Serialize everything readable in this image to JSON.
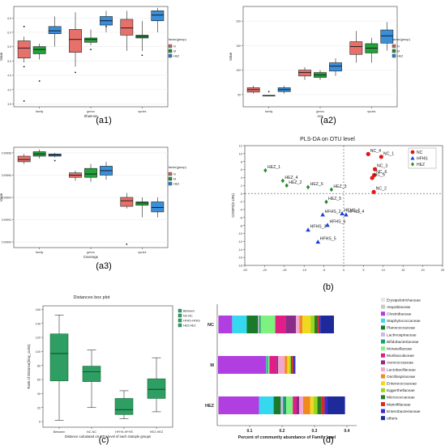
{
  "colors": {
    "N": "#e8706a",
    "M": "#22a33a",
    "HEZ": "#3a8fd8",
    "NC": "#e01818",
    "HFHS": "#1a3fd6",
    "HEZ_pls": "#2a8a2a"
  },
  "panel_labels": [
    "(a1)",
    "(a2)",
    "(a3)",
    "(b)",
    "(c)",
    "(d)"
  ],
  "chart_data": [
    {
      "id": "a1",
      "type": "box",
      "xlabel": "Shannon",
      "ylabel": "Value",
      "categories": [
        "family",
        "genus",
        "spcies"
      ],
      "yticks": [
        "3.5",
        "4.0",
        "4.5",
        "5.0",
        "5.5",
        "6.0",
        "6.5"
      ],
      "ylim": [
        3.4,
        6.9
      ],
      "legend": {
        "title": "factor(group)",
        "items": [
          "N",
          "M",
          "HEZ"
        ]
      },
      "boxes": [
        {
          "group": "N",
          "cat": 0,
          "whisker_low": 4.95,
          "q1": 5.1,
          "median": 5.45,
          "q3": 5.7,
          "whisker_high": 5.85,
          "outliers": [
            6.2,
            4.8,
            3.6
          ]
        },
        {
          "group": "M",
          "cat": 0,
          "whisker_low": 5.05,
          "q1": 5.25,
          "median": 5.4,
          "q3": 5.5,
          "whisker_high": 5.6,
          "outliers": [
            4.3
          ]
        },
        {
          "group": "HEZ",
          "cat": 0,
          "whisker_low": 5.5,
          "q1": 5.95,
          "median": 6.05,
          "q3": 6.2,
          "whisker_high": 6.55,
          "outliers": []
        },
        {
          "group": "N",
          "cat": 1,
          "whisker_low": 4.8,
          "q1": 5.3,
          "median": 5.75,
          "q3": 6.1,
          "whisker_high": 6.7,
          "outliers": [
            4.6
          ]
        },
        {
          "group": "M",
          "cat": 1,
          "whisker_low": 5.55,
          "q1": 5.65,
          "median": 5.75,
          "q3": 5.8,
          "whisker_high": 6.1,
          "outliers": [
            5.4
          ]
        },
        {
          "group": "HEZ",
          "cat": 1,
          "whisker_low": 6.0,
          "q1": 6.25,
          "median": 6.4,
          "q3": 6.55,
          "whisker_high": 6.75,
          "outliers": [
            6.2
          ]
        },
        {
          "group": "N",
          "cat": 2,
          "whisker_low": 5.35,
          "q1": 5.9,
          "median": 6.15,
          "q3": 6.45,
          "whisker_high": 6.75,
          "outliers": []
        },
        {
          "group": "M",
          "cat": 2,
          "whisker_low": 5.35,
          "q1": 5.8,
          "median": 5.85,
          "q3": 5.9,
          "whisker_high": 6.4,
          "outliers": [
            5.2
          ]
        },
        {
          "group": "HEZ",
          "cat": 2,
          "whisker_low": 6.0,
          "q1": 6.4,
          "median": 6.6,
          "q3": 6.75,
          "whisker_high": 6.85,
          "outliers": []
        }
      ]
    },
    {
      "id": "a2",
      "type": "box",
      "xlabel": "Ace",
      "ylabel": "Value",
      "categories": [
        "family",
        "genus",
        "spcies"
      ],
      "yticks": [
        "50",
        "100",
        "150",
        "200"
      ],
      "ylim": [
        25,
        230
      ],
      "legend": {
        "title": "factor(group)",
        "items": [
          "N",
          "M",
          "HEZ"
        ]
      },
      "boxes": [
        {
          "group": "N",
          "cat": 0,
          "whisker_low": 52,
          "q1": 55,
          "median": 60,
          "q3": 64,
          "whisker_high": 68,
          "outliers": []
        },
        {
          "group": "M",
          "cat": 0,
          "whisker_low": 48,
          "q1": 48,
          "median": 48,
          "q3": 48,
          "whisker_high": 48,
          "outliers": [
            56
          ]
        },
        {
          "group": "HEZ",
          "cat": 0,
          "whisker_low": 52,
          "q1": 56,
          "median": 60,
          "q3": 64,
          "whisker_high": 68,
          "outliers": []
        },
        {
          "group": "N",
          "cat": 1,
          "whisker_low": 80,
          "q1": 88,
          "median": 95,
          "q3": 100,
          "whisker_high": 106,
          "outliers": []
        },
        {
          "group": "M",
          "cat": 1,
          "whisker_low": 80,
          "q1": 85,
          "median": 90,
          "q3": 95,
          "whisker_high": 100,
          "outliers": []
        },
        {
          "group": "HEZ",
          "cat": 1,
          "whisker_low": 88,
          "q1": 98,
          "median": 108,
          "q3": 115,
          "whisker_high": 124,
          "outliers": []
        },
        {
          "group": "N",
          "cat": 2,
          "whisker_low": 115,
          "q1": 132,
          "median": 148,
          "q3": 158,
          "whisker_high": 180,
          "outliers": []
        },
        {
          "group": "M",
          "cat": 2,
          "whisker_low": 115,
          "q1": 135,
          "median": 145,
          "q3": 154,
          "whisker_high": 166,
          "outliers": []
        },
        {
          "group": "HEZ",
          "cat": 2,
          "whisker_low": 140,
          "q1": 155,
          "median": 170,
          "q3": 182,
          "whisker_high": 198,
          "outliers": []
        }
      ]
    },
    {
      "id": "a3",
      "type": "box",
      "xlabel": "Coverage",
      "ylabel": "Value",
      "categories": [
        "family",
        "genus",
        "spcies"
      ],
      "yticks": [
        "0.99990",
        "0.99992",
        "0.99994",
        "0.99996",
        "0.99998"
      ],
      "ylim": [
        0.999895,
        0.999985
      ],
      "legend": {
        "title": "factor(group)",
        "items": [
          "N",
          "M",
          "HEZ"
        ]
      },
      "boxes": [
        {
          "group": "N",
          "cat": 0,
          "whisker_low": 0.99997,
          "q1": 0.999972,
          "median": 0.999974,
          "q3": 0.999977,
          "whisker_high": 0.999979,
          "outliers": []
        },
        {
          "group": "M",
          "cat": 0,
          "whisker_low": 0.999975,
          "q1": 0.999977,
          "median": 0.999979,
          "q3": 0.999981,
          "whisker_high": 0.999983,
          "outliers": []
        },
        {
          "group": "HEZ",
          "cat": 0,
          "whisker_low": 0.999976,
          "q1": 0.999977,
          "median": 0.999978,
          "q3": 0.999979,
          "whisker_high": 0.99998,
          "outliers": [
            0.999973
          ]
        },
        {
          "group": "N",
          "cat": 1,
          "whisker_low": 0.999955,
          "q1": 0.999958,
          "median": 0.99996,
          "q3": 0.999962,
          "whisker_high": 0.999964,
          "outliers": []
        },
        {
          "group": "M",
          "cat": 1,
          "whisker_low": 0.999954,
          "q1": 0.999958,
          "median": 0.999961,
          "q3": 0.999966,
          "whisker_high": 0.99997,
          "outliers": []
        },
        {
          "group": "HEZ",
          "cat": 1,
          "whisker_low": 0.999956,
          "q1": 0.99996,
          "median": 0.999964,
          "q3": 0.999968,
          "whisker_high": 0.999972,
          "outliers": []
        },
        {
          "group": "N",
          "cat": 2,
          "whisker_low": 0.99993,
          "q1": 0.999932,
          "median": 0.999937,
          "q3": 0.99994,
          "whisker_high": 0.999944,
          "outliers": [
            0.999898
          ]
        },
        {
          "group": "M",
          "cat": 2,
          "whisker_low": 0.999922,
          "q1": 0.999933,
          "median": 0.999935,
          "q3": 0.999936,
          "whisker_high": 0.99994,
          "outliers": []
        },
        {
          "group": "HEZ",
          "cat": 2,
          "whisker_low": 0.999922,
          "q1": 0.999927,
          "median": 0.999931,
          "q3": 0.999936,
          "whisker_high": 0.99994,
          "outliers": []
        }
      ]
    },
    {
      "id": "b",
      "type": "scatter",
      "title": "PLS-DA on OTU level",
      "ylabel": "COMP2(9.13%)",
      "xticks": [
        "-25",
        "-20",
        "-15",
        "-10",
        "-5",
        "0",
        "5",
        "10",
        "15",
        "20",
        "25"
      ],
      "xlim": [
        -25,
        25
      ],
      "yticks": [
        "-18",
        "-16",
        "-14",
        "-12",
        "-10",
        "-8",
        "-6",
        "-4",
        "-2",
        "0",
        "2",
        "4",
        "6",
        "8",
        "10",
        "12"
      ],
      "ylim": [
        -18,
        12
      ],
      "legend": [
        "NC",
        "HFHS",
        "HEZ"
      ],
      "points": [
        {
          "group": "NC",
          "label": "NC_4",
          "x": 6.2,
          "y": 9.9
        },
        {
          "group": "NC",
          "label": "NC_1",
          "x": 9.5,
          "y": 9.2
        },
        {
          "group": "NC",
          "label": "NC_3",
          "x": 7.9,
          "y": 6.1
        },
        {
          "group": "NC",
          "label": "NC_6",
          "x": 7.7,
          "y": 4.6
        },
        {
          "group": "NC",
          "label": "NC_5",
          "x": 7.2,
          "y": 3.9
        },
        {
          "group": "NC",
          "label": "NC_2",
          "x": 7.6,
          "y": 0.4
        },
        {
          "group": "HFHS",
          "label": "HFHS_1",
          "x": -0.4,
          "y": -5.0
        },
        {
          "group": "HFHS",
          "label": "HFHS_2",
          "x": -5.3,
          "y": -5.3
        },
        {
          "group": "HFHS",
          "label": "HFHS_4",
          "x": 0.6,
          "y": -5.3
        },
        {
          "group": "HFHS",
          "label": "HFHS_6",
          "x": -4.1,
          "y": -7.9
        },
        {
          "group": "HFHS",
          "label": "HFHS_3",
          "x": -9.0,
          "y": -9.1
        },
        {
          "group": "HFHS",
          "label": "HFHS_5",
          "x": -6.5,
          "y": -12.1
        },
        {
          "group": "HEZ",
          "label": "HEZ_1",
          "x": -19.8,
          "y": 5.8
        },
        {
          "group": "HEZ",
          "label": "HEZ_4",
          "x": -15.4,
          "y": 3.2
        },
        {
          "group": "HEZ",
          "label": "HEZ_2",
          "x": -14.4,
          "y": 2.0
        },
        {
          "group": "HEZ",
          "label": "HEZ_6",
          "x": -9.0,
          "y": 1.6
        },
        {
          "group": "HEZ",
          "label": "HEZ_3",
          "x": -3.1,
          "y": 1.0
        },
        {
          "group": "HEZ",
          "label": "HEZ_5",
          "x": -4.4,
          "y": -2.1
        }
      ]
    },
    {
      "id": "c",
      "type": "box",
      "title": "Distances box plot",
      "xlabel": "Distance calculated on OTU level of each Sample groups",
      "ylabel": "Rank of Distance(bray_curtis)",
      "categories": [
        "Between",
        "NC-NC",
        "HFHS-HFHS",
        "HEZ-HEZ"
      ],
      "yticks": [
        "0",
        "20",
        "40",
        "60",
        "80",
        "100",
        "120",
        "140",
        "160"
      ],
      "ylim": [
        -8,
        165
      ],
      "legend": [
        "Between",
        "NC-NC",
        "HFHS-HFHS",
        "HEZ-HEZ"
      ],
      "boxes": [
        {
          "cat": 0,
          "whisker_low": 2,
          "q1": 58,
          "median": 97,
          "q3": 125,
          "whisker_high": 152
        },
        {
          "cat": 1,
          "whisker_low": 20,
          "q1": 57,
          "median": 71,
          "q3": 79,
          "whisker_high": 102
        },
        {
          "cat": 2,
          "whisker_low": 4,
          "q1": 10,
          "median": 17,
          "q3": 33,
          "whisker_high": 44
        },
        {
          "cat": 3,
          "whisker_low": 14,
          "q1": 33,
          "median": 46,
          "q3": 61,
          "whisker_high": 91
        }
      ]
    },
    {
      "id": "d",
      "type": "bar",
      "orientation": "horizontal",
      "stacked": true,
      "xlabel": "Percent of community abundance of Family level",
      "categories": [
        "NC",
        "M",
        "HEZ"
      ],
      "xticks": [
        "0.1",
        "0.2",
        "0.3",
        "0.4"
      ],
      "xlim": [
        0,
        0.43
      ],
      "series": [
        {
          "name": "Erysipelotrichaceae",
          "color": "#e6e6e6",
          "values": [
            0.002,
            0.001,
            0.002
          ]
        },
        {
          "name": "Atopobiaceae",
          "color": "#c9c9c9",
          "values": [
            0.002,
            0.001,
            0.002
          ]
        },
        {
          "name": "Clostridiaceae",
          "color": "#b03ee0",
          "values": [
            0.042,
            0.148,
            0.125
          ]
        },
        {
          "name": "Staphylococcaceae",
          "color": "#35d8ee",
          "values": [
            0.045,
            0.002,
            0.045
          ]
        },
        {
          "name": "Planococcaceae",
          "color": "#1b7a2a",
          "values": [
            0.035,
            0.002,
            0.022
          ]
        },
        {
          "name": "Lachnospiraceae",
          "color": "#cdb8e8",
          "values": [
            0.004,
            0.002,
            0.007
          ]
        },
        {
          "name": "Bifidobacteriaceae",
          "color": "#17a06a",
          "values": [
            0.004,
            0.002,
            0.01
          ]
        },
        {
          "name": "Moraxellaceae",
          "color": "#7ef27e",
          "values": [
            0.045,
            0.003,
            0.02
          ]
        },
        {
          "name": "Muribaculaceae",
          "color": "#e01e86",
          "values": [
            0.032,
            0.022,
            0.012
          ]
        },
        {
          "name": "Aerococcaceae",
          "color": "#8a2d8a",
          "values": [
            0.032,
            0.005,
            0.008
          ]
        },
        {
          "name": "Lactobacillaceae",
          "color": "#f0a8cf",
          "values": [
            0.01,
            0.02,
            0.012
          ]
        },
        {
          "name": "Oscillospiraceae",
          "color": "#f08a1e",
          "values": [
            0.01,
            0.008,
            0.022
          ]
        },
        {
          "name": "Enterococcaceae",
          "color": "#f0d81e",
          "values": [
            0.025,
            0.007,
            0.01
          ]
        },
        {
          "name": "Eggerthellaceae",
          "color": "#9ad81e",
          "values": [
            0.012,
            0.004,
            0.012
          ]
        },
        {
          "name": "Micrococcaceae",
          "color": "#2a7a2a",
          "values": [
            0.01,
            0.004,
            0.012
          ]
        },
        {
          "name": "Marinifilaceae",
          "color": "#e0281e",
          "values": [
            0.004,
            0.004,
            0.01
          ]
        },
        {
          "name": "Enterobacteriaceae",
          "color": "#3a2ad8",
          "values": [
            0.004,
            0.004,
            0.008
          ]
        },
        {
          "name": "others",
          "color": "#1e2a9a",
          "values": [
            0.042,
            0.002,
            0.055
          ]
        }
      ]
    }
  ]
}
